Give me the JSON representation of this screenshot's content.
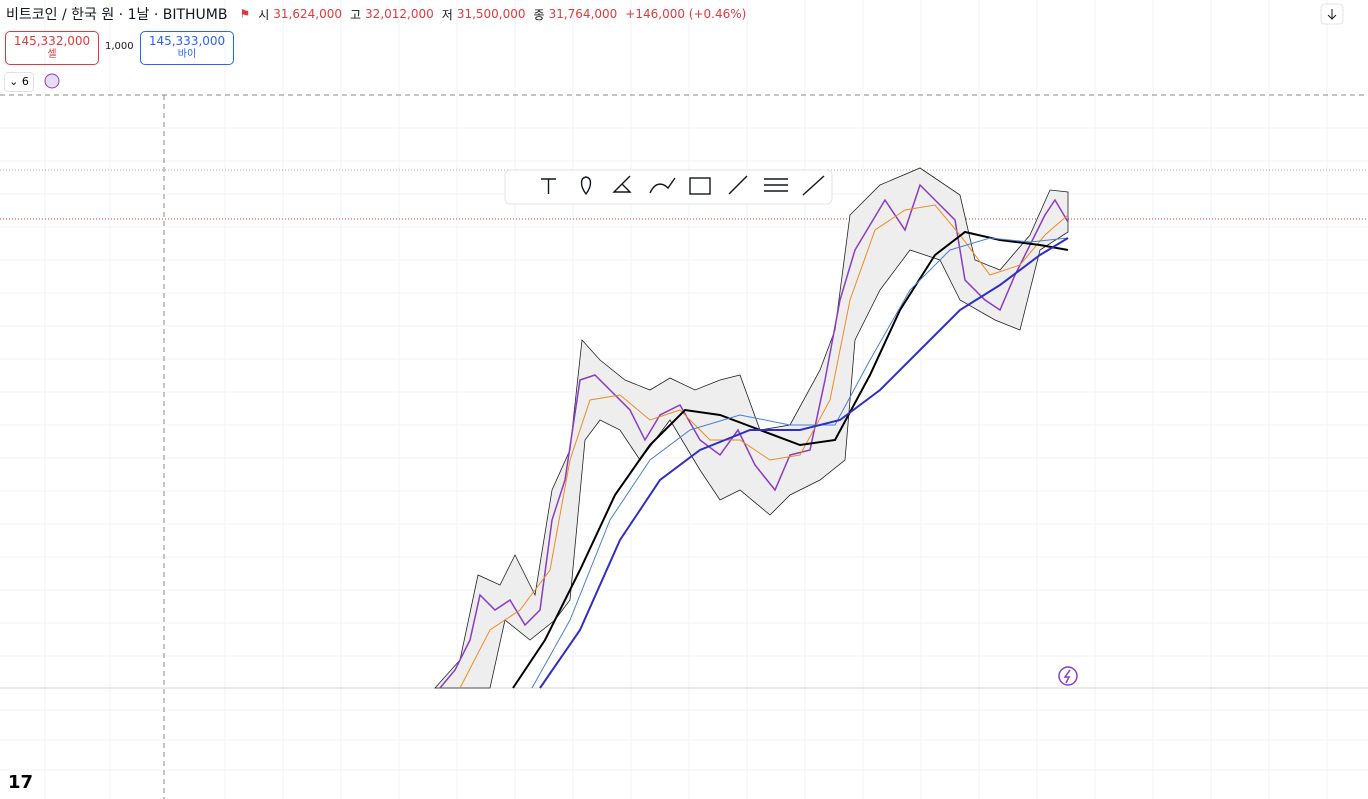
{
  "header": {
    "symbol": "비트코인 / 한국 원 · 1날 · BITHUMB",
    "ohlc": [
      {
        "label": "시",
        "value": "31,624,000"
      },
      {
        "label": "고",
        "value": "32,012,000"
      },
      {
        "label": "저",
        "value": "31,500,000"
      },
      {
        "label": "종",
        "value": "31,764,000"
      }
    ],
    "change": "+146,000 (+0.46%)"
  },
  "trade": {
    "sell": {
      "price": "145,332,000",
      "label": "셀"
    },
    "quantity": "1,000",
    "buy": {
      "price": "145,333,000",
      "label": "바이"
    }
  },
  "indicators": {
    "count": "6"
  }
}
